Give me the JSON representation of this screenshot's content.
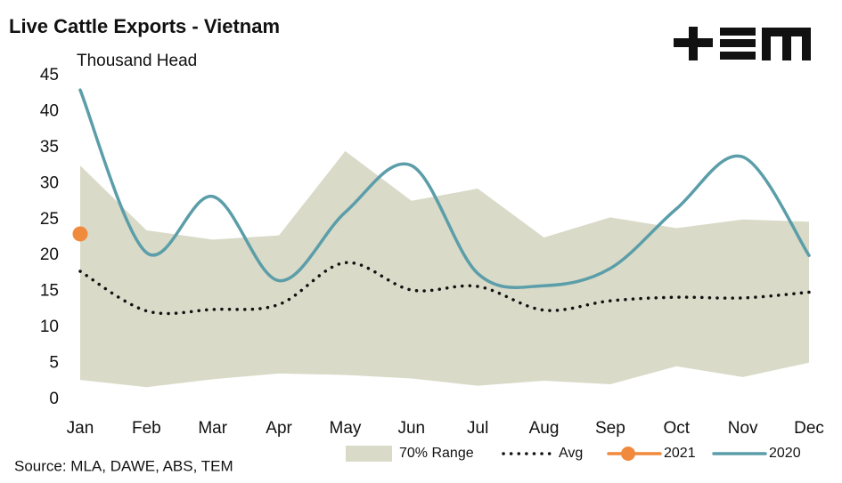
{
  "chart_data": {
    "type": "line",
    "title": "Live Cattle Exports - Vietnam",
    "subtitle": "Thousand Head",
    "source": "Source: MLA, DAWE, ABS, TEM",
    "categories": [
      "Jan",
      "Feb",
      "Mar",
      "Apr",
      "May",
      "Jun",
      "Jul",
      "Aug",
      "Sep",
      "Oct",
      "Nov",
      "Dec"
    ],
    "ylim": [
      0,
      45
    ],
    "yticks": [
      0,
      5,
      10,
      15,
      20,
      25,
      30,
      35,
      40,
      45
    ],
    "grid": false,
    "legend": "bottom",
    "range": {
      "name": "70% Range",
      "color": "#d9dac8",
      "high": [
        32.5,
        23.5,
        22.2,
        22.8,
        34.5,
        27.6,
        29.3,
        22.5,
        25.3,
        23.8,
        25,
        24.7
      ],
      "low": [
        2.7,
        1.7,
        2.8,
        3.6,
        3.4,
        2.9,
        1.9,
        2.6,
        2.1,
        4.6,
        3.1,
        5.1
      ]
    },
    "series": [
      {
        "name": "Avg",
        "color": "#111111",
        "style": "dotted",
        "values": [
          17.8,
          12.3,
          12.5,
          13.2,
          19,
          15.2,
          15.7,
          12.4,
          13.7,
          14.2,
          14.1,
          14.9
        ]
      },
      {
        "name": "2021",
        "color": "#f08a3c",
        "style": "marker",
        "values": [
          23,
          null,
          null,
          null,
          null,
          null,
          null,
          null,
          null,
          null,
          null,
          null
        ]
      },
      {
        "name": "2020",
        "color": "#5b9ea9",
        "style": "solid",
        "values": [
          43,
          20.4,
          28.2,
          16.5,
          26,
          32.5,
          17.5,
          15.8,
          18.2,
          26.5,
          33.7,
          20
        ]
      }
    ]
  }
}
